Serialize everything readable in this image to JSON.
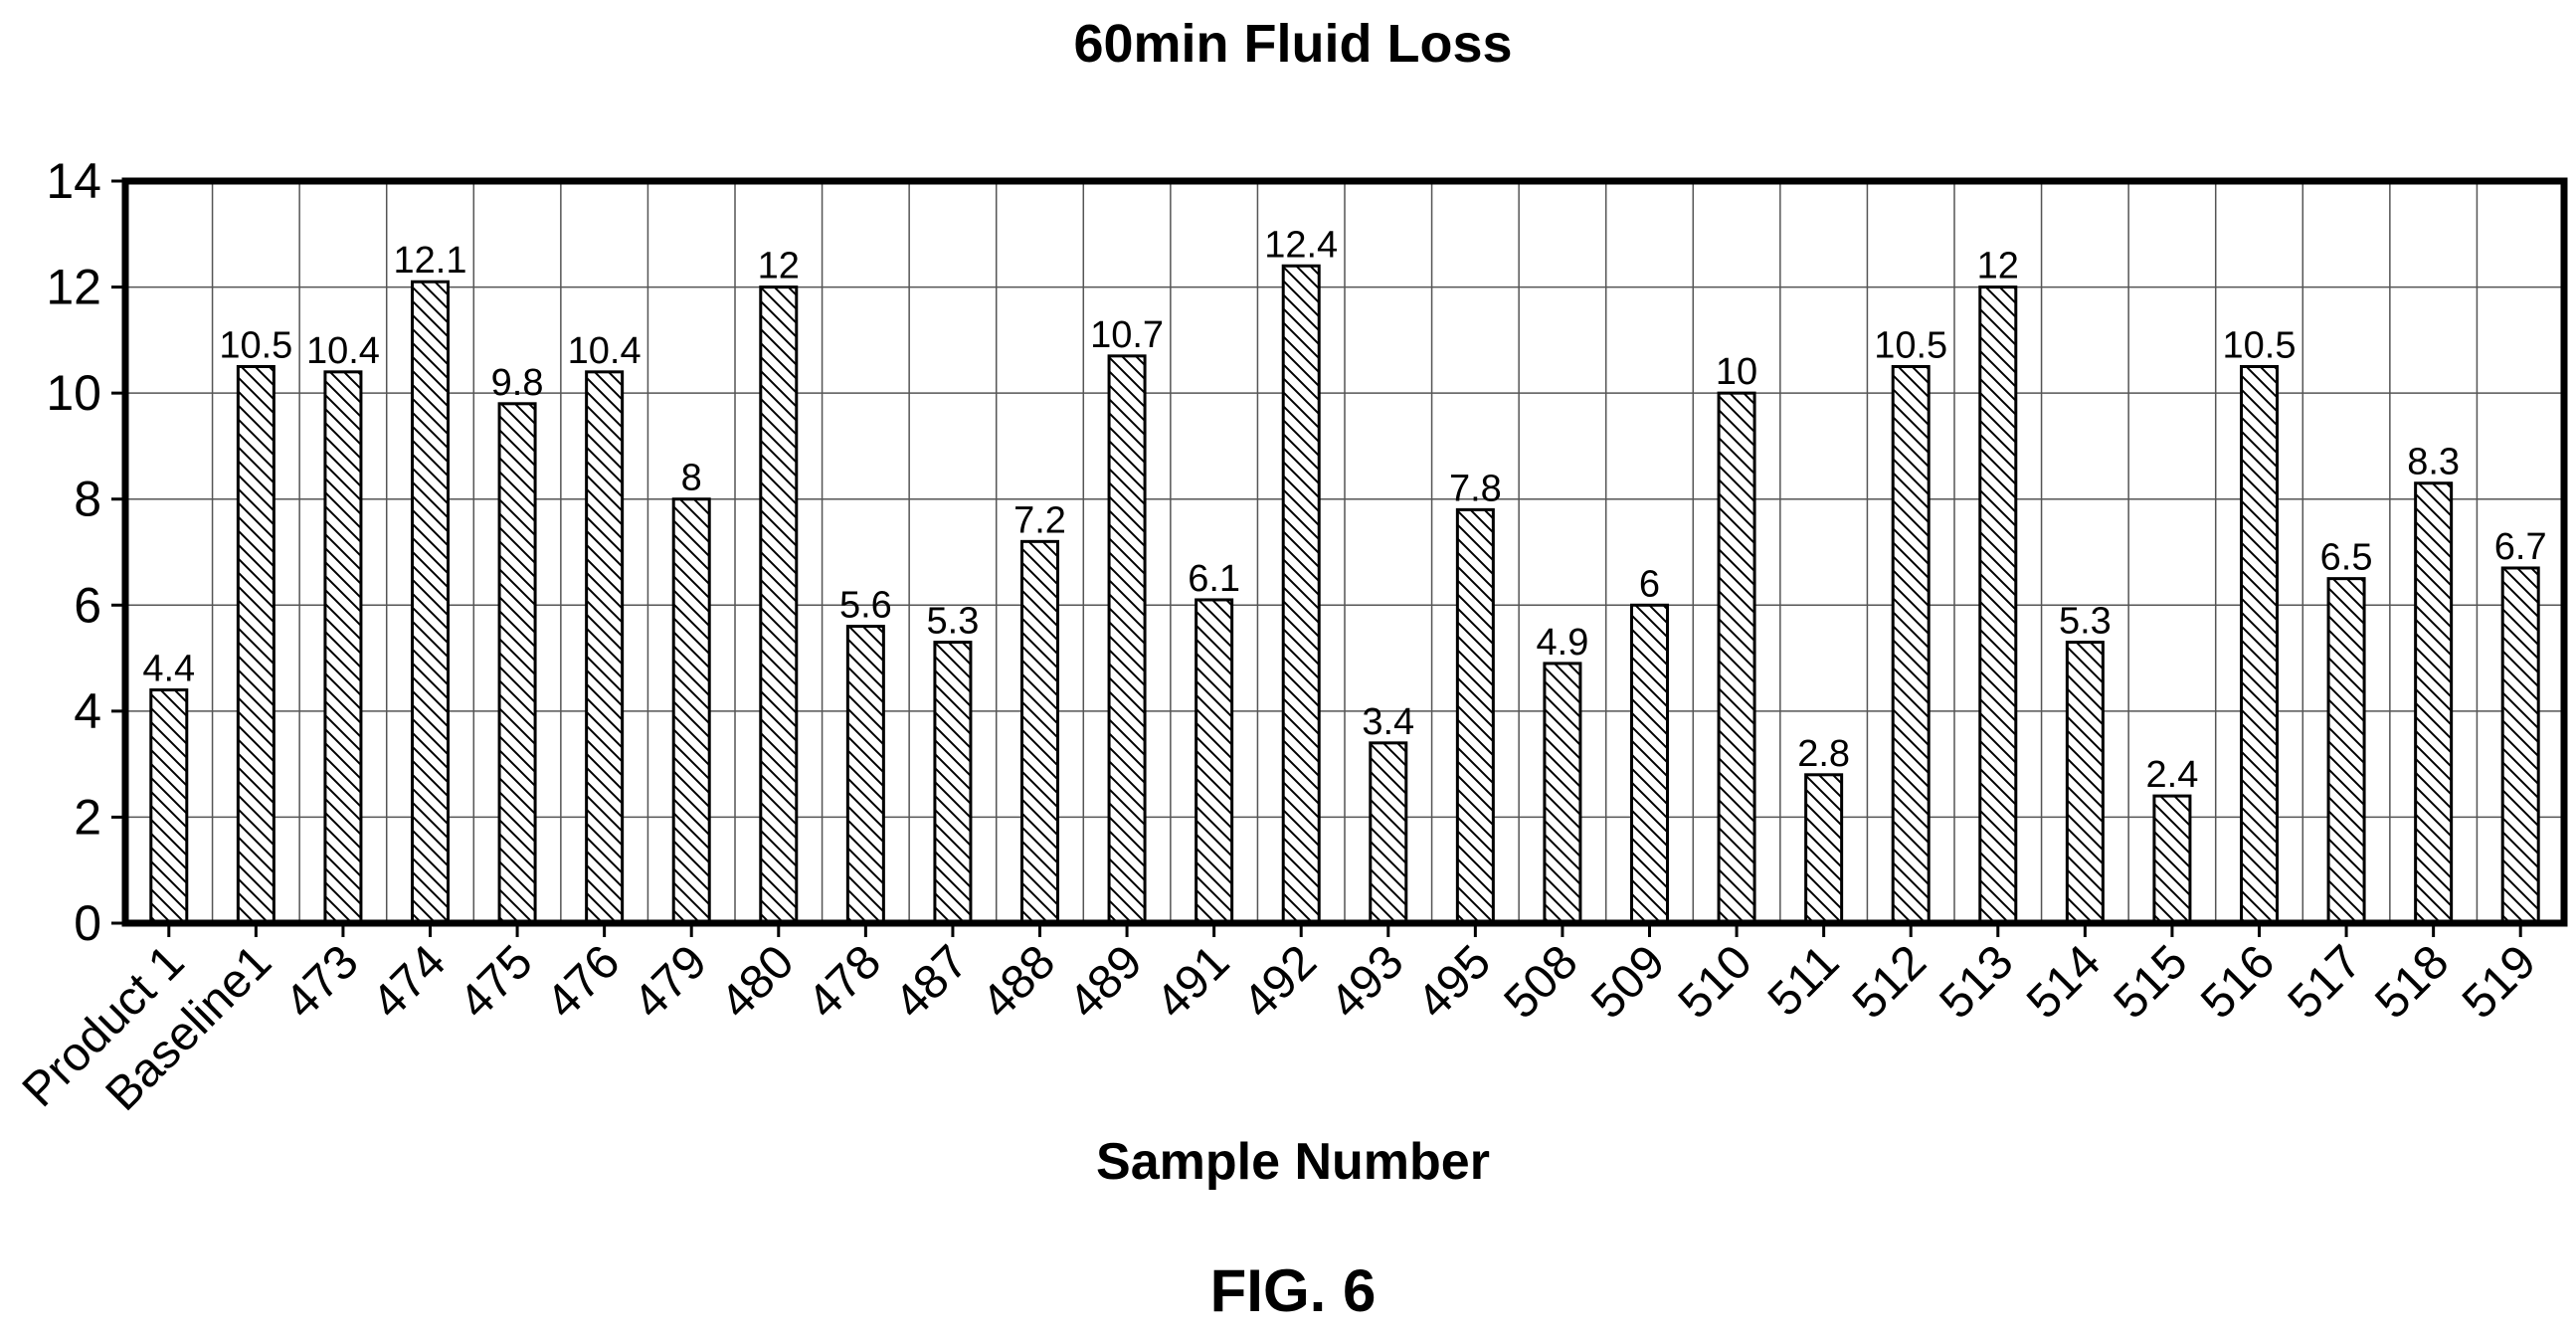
{
  "chart_data": {
    "type": "bar",
    "title": "60min Fluid Loss",
    "xlabel": "Sample Number",
    "ylabel": "",
    "ylim": [
      0,
      14
    ],
    "yticks": [
      "0",
      "2",
      "4",
      "6",
      "8",
      "10",
      "12",
      "14"
    ],
    "grid": true,
    "categories": [
      "Product 1",
      "Baseline1",
      "473",
      "474",
      "475",
      "476",
      "479",
      "480",
      "478",
      "487",
      "488",
      "489",
      "491",
      "492",
      "493",
      "495",
      "508",
      "509",
      "510",
      "511",
      "512",
      "513",
      "514",
      "515",
      "516",
      "517",
      "518",
      "519"
    ],
    "values": [
      4.4,
      10.5,
      10.4,
      12.1,
      9.8,
      10.4,
      8,
      12,
      5.6,
      5.3,
      7.2,
      10.7,
      6.1,
      12.4,
      3.4,
      7.8,
      4.9,
      6,
      10,
      2.8,
      10.5,
      12,
      5.3,
      2.4,
      10.5,
      6.5,
      8.3,
      6.7
    ],
    "data_labels": [
      "4.4",
      "10.5",
      "10.4",
      "12.1",
      "9.8",
      "10.4",
      "8",
      "12",
      "5.6",
      "5.3",
      "7.2",
      "10.7",
      "6.1",
      "12.4",
      "3.4",
      "7.8",
      "4.9",
      "6",
      "10",
      "2.8",
      "10.5",
      "12",
      "5.3",
      "2.4",
      "10.5",
      "6.5",
      "8.3",
      "6.7"
    ]
  },
  "figure_label": "FIG. 6"
}
